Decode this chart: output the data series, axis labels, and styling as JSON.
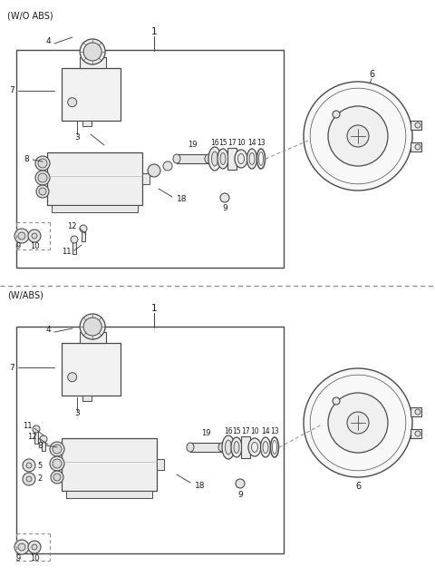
{
  "bg_color": "#ffffff",
  "line_color": "#4a4a4a",
  "text_color": "#1a1a1a",
  "dashed_color": "#888888",
  "section1_label": "(W/O ABS)",
  "section2_label": "(W/ABS)",
  "fig_width": 4.8,
  "fig_height": 6.36,
  "dpi": 100
}
